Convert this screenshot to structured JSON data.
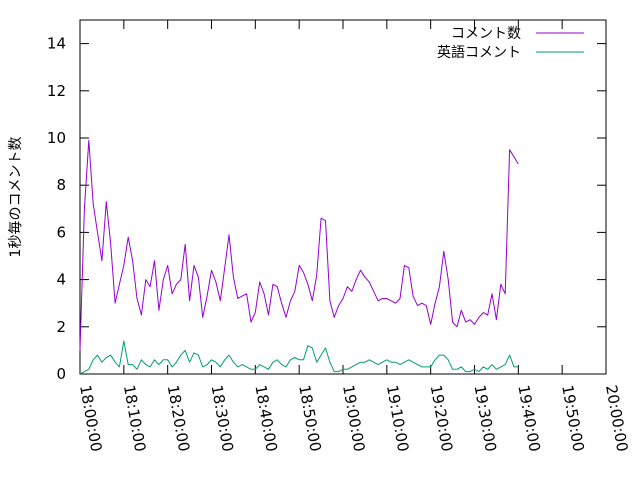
{
  "chart_data": {
    "type": "line",
    "title": "",
    "xlabel": "",
    "ylabel": "1秒毎のコメント数",
    "ylim": [
      0,
      15
    ],
    "yticks": [
      "0",
      "2",
      "4",
      "6",
      "8",
      "10",
      "12",
      "14"
    ],
    "xlim": [
      "18:00:00",
      "20:00:00"
    ],
    "xticks": [
      "18:00:00",
      "18:10:00",
      "18:20:00",
      "18:30:00",
      "18:40:00",
      "18:50:00",
      "19:00:00",
      "19:10:00",
      "19:20:00",
      "19:30:00",
      "19:40:00",
      "19:50:00",
      "20:00:00"
    ],
    "grid": false,
    "legend_position": "top-right",
    "series": [
      {
        "name": "コメント数",
        "color": "#9400d3",
        "points": [
          [
            "18:00:00",
            1.0
          ],
          [
            "18:01:00",
            7.0
          ],
          [
            "18:02:00",
            9.9
          ],
          [
            "18:03:00",
            7.2
          ],
          [
            "18:04:00",
            6.0
          ],
          [
            "18:05:00",
            4.8
          ],
          [
            "18:06:00",
            7.3
          ],
          [
            "18:07:00",
            5.5
          ],
          [
            "18:08:00",
            3.0
          ],
          [
            "18:09:00",
            3.8
          ],
          [
            "18:10:00",
            4.6
          ],
          [
            "18:11:00",
            5.8
          ],
          [
            "18:12:00",
            4.8
          ],
          [
            "18:13:00",
            3.2
          ],
          [
            "18:14:00",
            2.5
          ],
          [
            "18:15:00",
            4.0
          ],
          [
            "18:16:00",
            3.7
          ],
          [
            "18:17:00",
            4.8
          ],
          [
            "18:18:00",
            2.7
          ],
          [
            "18:19:00",
            4.0
          ],
          [
            "18:20:00",
            4.6
          ],
          [
            "18:21:00",
            3.4
          ],
          [
            "18:22:00",
            3.8
          ],
          [
            "18:23:00",
            4.0
          ],
          [
            "18:24:00",
            5.5
          ],
          [
            "18:25:00",
            3.1
          ],
          [
            "18:26:00",
            4.6
          ],
          [
            "18:27:00",
            4.1
          ],
          [
            "18:28:00",
            2.4
          ],
          [
            "18:29:00",
            3.3
          ],
          [
            "18:30:00",
            4.4
          ],
          [
            "18:31:00",
            3.9
          ],
          [
            "18:32:00",
            3.1
          ],
          [
            "18:33:00",
            4.5
          ],
          [
            "18:34:00",
            5.9
          ],
          [
            "18:35:00",
            4.1
          ],
          [
            "18:36:00",
            3.2
          ],
          [
            "18:37:00",
            3.3
          ],
          [
            "18:38:00",
            3.4
          ],
          [
            "18:39:00",
            2.2
          ],
          [
            "18:40:00",
            2.6
          ],
          [
            "18:41:00",
            3.9
          ],
          [
            "18:42:00",
            3.4
          ],
          [
            "18:43:00",
            2.5
          ],
          [
            "18:44:00",
            3.8
          ],
          [
            "18:45:00",
            3.7
          ],
          [
            "18:46:00",
            3.0
          ],
          [
            "18:47:00",
            2.4
          ],
          [
            "18:48:00",
            3.1
          ],
          [
            "18:49:00",
            3.5
          ],
          [
            "18:50:00",
            4.6
          ],
          [
            "18:51:00",
            4.3
          ],
          [
            "18:52:00",
            3.8
          ],
          [
            "18:53:00",
            3.1
          ],
          [
            "18:54:00",
            4.2
          ],
          [
            "18:55:00",
            6.6
          ],
          [
            "18:56:00",
            6.5
          ],
          [
            "18:57:00",
            3.1
          ],
          [
            "18:58:00",
            2.4
          ],
          [
            "18:59:00",
            2.9
          ],
          [
            "19:00:00",
            3.2
          ],
          [
            "19:01:00",
            3.7
          ],
          [
            "19:02:00",
            3.5
          ],
          [
            "19:03:00",
            4.0
          ],
          [
            "19:04:00",
            4.4
          ],
          [
            "19:05:00",
            4.1
          ],
          [
            "19:06:00",
            3.9
          ],
          [
            "19:07:00",
            3.5
          ],
          [
            "19:08:00",
            3.1
          ],
          [
            "19:09:00",
            3.2
          ],
          [
            "19:10:00",
            3.2
          ],
          [
            "19:11:00",
            3.1
          ],
          [
            "19:12:00",
            3.0
          ],
          [
            "19:13:00",
            3.2
          ],
          [
            "19:14:00",
            4.6
          ],
          [
            "19:15:00",
            4.5
          ],
          [
            "19:16:00",
            3.3
          ],
          [
            "19:17:00",
            2.9
          ],
          [
            "19:18:00",
            3.0
          ],
          [
            "19:19:00",
            2.9
          ],
          [
            "19:20:00",
            2.1
          ],
          [
            "19:21:00",
            3.0
          ],
          [
            "19:22:00",
            3.7
          ],
          [
            "19:23:00",
            5.2
          ],
          [
            "19:24:00",
            4.0
          ],
          [
            "19:25:00",
            2.2
          ],
          [
            "19:26:00",
            2.0
          ],
          [
            "19:27:00",
            2.7
          ],
          [
            "19:28:00",
            2.2
          ],
          [
            "19:29:00",
            2.3
          ],
          [
            "19:30:00",
            2.1
          ],
          [
            "19:31:00",
            2.4
          ],
          [
            "19:32:00",
            2.6
          ],
          [
            "19:33:00",
            2.5
          ],
          [
            "19:34:00",
            3.4
          ],
          [
            "19:35:00",
            2.3
          ],
          [
            "19:36:00",
            3.8
          ],
          [
            "19:37:00",
            3.4
          ],
          [
            "19:38:00",
            9.5
          ],
          [
            "19:39:00",
            9.2
          ],
          [
            "19:40:00",
            8.9
          ]
        ]
      },
      {
        "name": "英語コメント",
        "color": "#009e73",
        "points": [
          [
            "18:00:00",
            0.0
          ],
          [
            "18:01:00",
            0.1
          ],
          [
            "18:02:00",
            0.2
          ],
          [
            "18:03:00",
            0.6
          ],
          [
            "18:04:00",
            0.8
          ],
          [
            "18:05:00",
            0.5
          ],
          [
            "18:06:00",
            0.7
          ],
          [
            "18:07:00",
            0.8
          ],
          [
            "18:08:00",
            0.5
          ],
          [
            "18:09:00",
            0.3
          ],
          [
            "18:10:00",
            1.4
          ],
          [
            "18:11:00",
            0.4
          ],
          [
            "18:12:00",
            0.4
          ],
          [
            "18:13:00",
            0.2
          ],
          [
            "18:14:00",
            0.6
          ],
          [
            "18:15:00",
            0.4
          ],
          [
            "18:16:00",
            0.3
          ],
          [
            "18:17:00",
            0.6
          ],
          [
            "18:18:00",
            0.4
          ],
          [
            "18:19:00",
            0.6
          ],
          [
            "18:20:00",
            0.6
          ],
          [
            "18:21:00",
            0.3
          ],
          [
            "18:22:00",
            0.5
          ],
          [
            "18:23:00",
            0.8
          ],
          [
            "18:24:00",
            1.0
          ],
          [
            "18:25:00",
            0.5
          ],
          [
            "18:26:00",
            0.9
          ],
          [
            "18:27:00",
            0.8
          ],
          [
            "18:28:00",
            0.3
          ],
          [
            "18:29:00",
            0.4
          ],
          [
            "18:30:00",
            0.6
          ],
          [
            "18:31:00",
            0.5
          ],
          [
            "18:32:00",
            0.3
          ],
          [
            "18:33:00",
            0.6
          ],
          [
            "18:34:00",
            0.8
          ],
          [
            "18:35:00",
            0.5
          ],
          [
            "18:36:00",
            0.3
          ],
          [
            "18:37:00",
            0.4
          ],
          [
            "18:38:00",
            0.3
          ],
          [
            "18:39:00",
            0.2
          ],
          [
            "18:40:00",
            0.2
          ],
          [
            "18:41:00",
            0.4
          ],
          [
            "18:42:00",
            0.3
          ],
          [
            "18:43:00",
            0.2
          ],
          [
            "18:44:00",
            0.5
          ],
          [
            "18:45:00",
            0.6
          ],
          [
            "18:46:00",
            0.4
          ],
          [
            "18:47:00",
            0.3
          ],
          [
            "18:48:00",
            0.6
          ],
          [
            "18:49:00",
            0.7
          ],
          [
            "18:50:00",
            0.6
          ],
          [
            "18:51:00",
            0.6
          ],
          [
            "18:52:00",
            1.2
          ],
          [
            "18:53:00",
            1.1
          ],
          [
            "18:54:00",
            0.5
          ],
          [
            "18:55:00",
            0.8
          ],
          [
            "18:56:00",
            1.1
          ],
          [
            "18:57:00",
            0.5
          ],
          [
            "18:58:00",
            0.1
          ],
          [
            "18:59:00",
            0.1
          ],
          [
            "19:00:00",
            0.2
          ],
          [
            "19:01:00",
            0.2
          ],
          [
            "19:02:00",
            0.3
          ],
          [
            "19:03:00",
            0.4
          ],
          [
            "19:04:00",
            0.5
          ],
          [
            "19:05:00",
            0.5
          ],
          [
            "19:06:00",
            0.6
          ],
          [
            "19:07:00",
            0.5
          ],
          [
            "19:08:00",
            0.4
          ],
          [
            "19:09:00",
            0.5
          ],
          [
            "19:10:00",
            0.6
          ],
          [
            "19:11:00",
            0.5
          ],
          [
            "19:12:00",
            0.5
          ],
          [
            "19:13:00",
            0.4
          ],
          [
            "19:14:00",
            0.5
          ],
          [
            "19:15:00",
            0.6
          ],
          [
            "19:16:00",
            0.5
          ],
          [
            "19:17:00",
            0.4
          ],
          [
            "19:18:00",
            0.3
          ],
          [
            "19:19:00",
            0.3
          ],
          [
            "19:20:00",
            0.3
          ],
          [
            "19:21:00",
            0.6
          ],
          [
            "19:22:00",
            0.8
          ],
          [
            "19:23:00",
            0.8
          ],
          [
            "19:24:00",
            0.6
          ],
          [
            "19:25:00",
            0.2
          ],
          [
            "19:26:00",
            0.2
          ],
          [
            "19:27:00",
            0.3
          ],
          [
            "19:28:00",
            0.1
          ],
          [
            "19:29:00",
            0.1
          ],
          [
            "19:30:00",
            0.2
          ],
          [
            "19:31:00",
            0.1
          ],
          [
            "19:32:00",
            0.3
          ],
          [
            "19:33:00",
            0.2
          ],
          [
            "19:34:00",
            0.4
          ],
          [
            "19:35:00",
            0.2
          ],
          [
            "19:36:00",
            0.3
          ],
          [
            "19:37:00",
            0.4
          ],
          [
            "19:38:00",
            0.8
          ],
          [
            "19:39:00",
            0.3
          ],
          [
            "19:40:00",
            0.3
          ]
        ]
      }
    ]
  }
}
